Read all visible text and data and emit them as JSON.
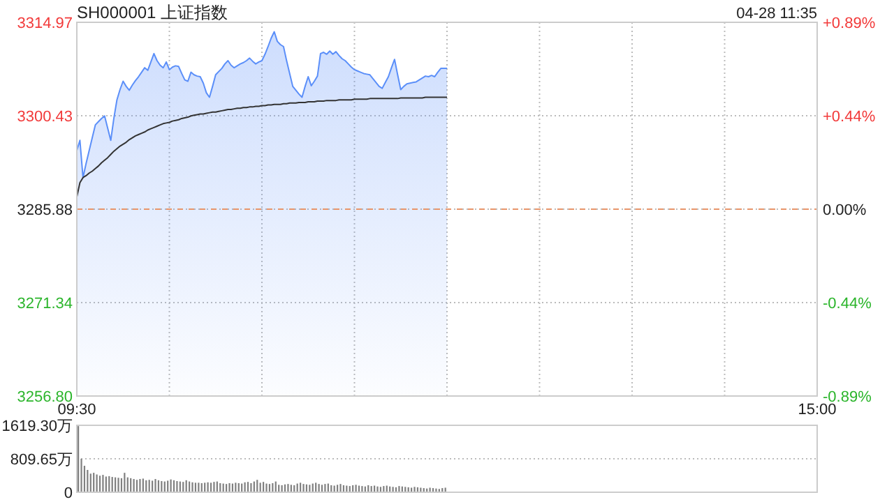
{
  "chart_data": [
    {
      "type": "area",
      "title": "SH000001 上证指数",
      "annotations": [
        "04-28 11:35"
      ],
      "categories": [
        "09:30",
        null,
        null,
        null,
        null,
        null,
        null,
        null,
        null,
        null,
        null,
        null,
        null,
        null,
        null,
        null,
        null,
        null,
        null,
        null,
        null,
        null,
        null,
        null,
        null,
        null,
        null,
        null,
        null,
        null,
        null,
        null,
        null,
        null,
        null,
        null,
        null,
        null,
        null,
        null,
        null,
        null,
        null,
        null,
        null,
        null,
        null,
        null,
        null,
        null,
        null,
        null,
        null,
        null,
        null,
        null,
        null,
        null,
        null,
        null,
        null,
        null,
        null,
        null,
        null,
        null,
        null,
        null,
        null,
        null,
        null,
        null,
        null,
        null,
        null,
        null,
        null,
        null,
        null,
        null,
        null,
        null,
        null,
        null,
        null,
        null,
        null,
        null,
        null,
        null,
        null,
        null,
        null,
        null,
        null,
        null,
        null,
        null,
        null,
        null,
        null,
        null,
        null,
        null,
        null,
        null,
        null,
        null,
        null,
        null,
        null,
        null,
        null,
        null,
        null,
        null,
        null,
        null,
        null,
        null,
        null,
        null,
        null,
        null,
        null,
        null,
        null,
        null,
        null,
        null,
        null,
        null,
        null,
        null,
        null,
        null,
        null,
        null,
        null,
        null,
        null,
        null,
        null,
        null,
        null,
        null,
        null,
        null,
        null,
        null,
        null,
        null,
        null,
        null,
        null,
        null,
        null,
        null,
        null,
        null,
        null,
        null,
        null,
        null,
        null,
        null,
        null,
        null,
        null,
        null,
        null,
        null,
        null,
        null,
        null,
        null,
        null,
        null,
        null,
        null,
        null,
        null,
        null,
        null,
        null,
        null,
        null,
        null,
        null,
        null,
        null,
        null,
        null,
        null,
        null,
        null,
        null,
        null,
        null,
        null,
        null,
        null,
        null,
        null,
        null,
        null,
        null,
        null,
        null,
        null,
        null,
        null,
        null,
        null,
        null,
        null,
        null,
        null,
        null,
        null,
        null,
        null,
        null,
        null,
        null,
        null,
        null,
        null,
        null,
        null,
        null,
        null,
        null,
        null,
        null,
        null,
        null,
        null,
        null,
        null,
        "15:00"
      ],
      "ylim": [
        3256.8,
        3314.97
      ],
      "yticks": [
        {
          "value": 3256.8,
          "label": "3256.80"
        },
        3271.34,
        3285.88,
        3300.43,
        3314.97
      ],
      "y2lim": [
        -0.885,
        0.885
      ],
      "y2ticks": [
        {
          "value": -0.885,
          "label": "-0.89%"
        },
        {
          "value": -0.4425,
          "label": "-0.44%"
        },
        {
          "value": 0,
          "label": "0.00%"
        },
        {
          "value": 0.4425,
          "label": "+0.44%"
        },
        {
          "value": 0.885,
          "label": "+0.89%"
        }
      ],
      "grid": true,
      "ref_lines": [
        {
          "axis": "y",
          "value": 3285.88,
          "color": "#e8956a",
          "line_style": "dashed"
        }
      ],
      "series": [
        {
          "type": "area",
          "color": "#5b8ff9",
          "values": [
            3295.0,
            3296.6,
            3290.8,
            3293.0,
            3295.0,
            3297.0,
            3299.0,
            3299.5,
            3300.0,
            3300.4,
            3298.5,
            3296.6,
            3300.0,
            3302.9,
            3304.5,
            3305.8,
            3305.0,
            3304.4,
            3305.2,
            3305.9,
            3306.5,
            3307.2,
            3307.9,
            3307.5,
            3308.8,
            3310.1,
            3309.0,
            3308.3,
            3307.9,
            3308.8,
            3307.6,
            3308.0,
            3308.2,
            3308.1,
            3307.0,
            3306.0,
            3305.8,
            3307.2,
            3306.8,
            3306.6,
            3306.5,
            3305.5,
            3304.0,
            3303.3,
            3305.0,
            3306.8,
            3307.3,
            3307.8,
            3308.5,
            3309.0,
            3308.3,
            3307.9,
            3308.2,
            3308.5,
            3308.7,
            3309.0,
            3309.4,
            3308.9,
            3308.5,
            3308.8,
            3309.0,
            3310.0,
            3311.2,
            3312.5,
            3313.5,
            3312.0,
            3311.5,
            3311.2,
            3309.0,
            3307.0,
            3305.0,
            3304.4,
            3303.8,
            3303.3,
            3305.0,
            3306.5,
            3305.1,
            3305.8,
            3306.6,
            3310.1,
            3310.3,
            3310.0,
            3310.5,
            3310.0,
            3310.4,
            3309.8,
            3309.3,
            3309.0,
            3308.5,
            3308.0,
            3307.6,
            3307.4,
            3307.2,
            3307.0,
            3306.9,
            3306.8,
            3306.2,
            3305.6,
            3305.0,
            3304.7,
            3305.6,
            3306.5,
            3307.9,
            3309.2,
            3306.8,
            3304.5,
            3305.0,
            3305.4,
            3305.5,
            3305.6,
            3305.7,
            3306.0,
            3306.3,
            3306.6,
            3306.5,
            3306.7,
            3306.5,
            3307.2,
            3307.8,
            3307.8,
            3307.8,
            null,
            null,
            null,
            null,
            null,
            null,
            null,
            null,
            null,
            null,
            null,
            null,
            null,
            null,
            null,
            null,
            null,
            null,
            null,
            null,
            null,
            null,
            null,
            null,
            null,
            null,
            null,
            null,
            null,
            null,
            null,
            null,
            null,
            null,
            null,
            null,
            null,
            null,
            null,
            null,
            null,
            null,
            null,
            null,
            null,
            null,
            null,
            null,
            null,
            null,
            null,
            null,
            null,
            null,
            null,
            null,
            null,
            null,
            null,
            null,
            null,
            null,
            null,
            null,
            null,
            null,
            null,
            null,
            null,
            null,
            null,
            null,
            null,
            null,
            null,
            null,
            null,
            null,
            null,
            null,
            null,
            null,
            null,
            null,
            null,
            null,
            null,
            null,
            null,
            null,
            null,
            null,
            null,
            null,
            null,
            null,
            null,
            null,
            null,
            null,
            null,
            null,
            null,
            null,
            null,
            null,
            null,
            null,
            null,
            null,
            null,
            null,
            null,
            null,
            null,
            null,
            null,
            null,
            null,
            null
          ]
        },
        {
          "type": "line",
          "color": "#333333",
          "values": [
            3287.8,
            3290.0,
            3290.8,
            3291.1,
            3291.5,
            3291.8,
            3292.2,
            3292.6,
            3293.1,
            3293.5,
            3293.9,
            3294.4,
            3294.9,
            3295.3,
            3295.7,
            3296.0,
            3296.3,
            3296.7,
            3297.0,
            3297.3,
            3297.5,
            3297.7,
            3297.9,
            3298.2,
            3298.4,
            3298.6,
            3298.8,
            3299.0,
            3299.2,
            3299.3,
            3299.4,
            3299.6,
            3299.7,
            3299.8,
            3300.0,
            3300.1,
            3300.2,
            3300.4,
            3300.5,
            3300.6,
            3300.7,
            3300.7,
            3300.8,
            3300.9,
            3301.0,
            3301.0,
            3301.1,
            3301.2,
            3301.3,
            3301.4,
            3301.4,
            3301.5,
            3301.6,
            3301.6,
            3301.7,
            3301.7,
            3301.8,
            3301.8,
            3301.9,
            3301.9,
            3302.0,
            3302.0,
            3302.1,
            3302.1,
            3302.2,
            3302.2,
            3302.2,
            3302.3,
            3302.3,
            3302.4,
            3302.4,
            3302.4,
            3302.5,
            3302.5,
            3302.5,
            3302.6,
            3302.6,
            3302.6,
            3302.7,
            3302.7,
            3302.7,
            3302.8,
            3302.8,
            3302.8,
            3302.8,
            3302.9,
            3302.9,
            3302.9,
            3302.9,
            3302.9,
            3303.0,
            3303.0,
            3303.0,
            3303.0,
            3303.0,
            3303.1,
            3303.1,
            3303.1,
            3303.1,
            3303.1,
            3303.1,
            3303.1,
            3303.1,
            3303.1,
            3303.1,
            3303.2,
            3303.2,
            3303.2,
            3303.2,
            3303.2,
            3303.2,
            3303.2,
            3303.2,
            3303.3,
            3303.3,
            3303.3,
            3303.3,
            3303.3,
            3303.3,
            3303.3,
            3303.3,
            null,
            null,
            null,
            null,
            null,
            null,
            null,
            null,
            null,
            null,
            null,
            null,
            null,
            null,
            null,
            null,
            null,
            null,
            null,
            null,
            null,
            null,
            null,
            null,
            null,
            null,
            null,
            null,
            null,
            null,
            null,
            null,
            null,
            null,
            null,
            null,
            null,
            null,
            null,
            null,
            null,
            null,
            null,
            null,
            null,
            null,
            null,
            null,
            null,
            null,
            null,
            null,
            null,
            null,
            null,
            null,
            null,
            null,
            null,
            null,
            null,
            null,
            null,
            null,
            null,
            null,
            null,
            null,
            null,
            null,
            null,
            null,
            null,
            null,
            null,
            null,
            null,
            null,
            null,
            null,
            null,
            null,
            null,
            null,
            null,
            null,
            null,
            null,
            null,
            null,
            null,
            null,
            null,
            null,
            null,
            null,
            null,
            null,
            null,
            null,
            null,
            null,
            null,
            null,
            null,
            null,
            null,
            null,
            null,
            null,
            null,
            null,
            null,
            null,
            null,
            null,
            null,
            null,
            null,
            null
          ]
        }
      ]
    },
    {
      "type": "bar",
      "color": "#808080",
      "tick_labels": "y",
      "grid": "y",
      "categories": [
        null,
        null,
        null,
        null,
        null,
        null,
        null,
        null,
        null,
        null,
        null,
        null,
        null,
        null,
        null,
        null,
        null,
        null,
        null,
        null,
        null,
        null,
        null,
        null,
        null,
        null,
        null,
        null,
        null,
        null,
        null,
        null,
        null,
        null,
        null,
        null,
        null,
        null,
        null,
        null,
        null,
        null,
        null,
        null,
        null,
        null,
        null,
        null,
        null,
        null,
        null,
        null,
        null,
        null,
        null,
        null,
        null,
        null,
        null,
        null,
        null,
        null,
        null,
        null,
        null,
        null,
        null,
        null,
        null,
        null,
        null,
        null,
        null,
        null,
        null,
        null,
        null,
        null,
        null,
        null,
        null,
        null,
        null,
        null,
        null,
        null,
        null,
        null,
        null,
        null,
        null,
        null,
        null,
        null,
        null,
        null,
        null,
        null,
        null,
        null,
        null,
        null,
        null,
        null,
        null,
        null,
        null,
        null,
        null,
        null,
        null,
        null,
        null,
        null,
        null,
        null,
        null,
        null,
        null,
        null,
        null,
        null,
        null,
        null,
        null,
        null,
        null,
        null,
        null,
        null,
        null,
        null,
        null,
        null,
        null,
        null,
        null,
        null,
        null,
        null,
        null,
        null,
        null,
        null,
        null,
        null,
        null,
        null,
        null,
        null,
        null,
        null,
        null,
        null,
        null,
        null,
        null,
        null,
        null,
        null,
        null,
        null,
        null,
        null,
        null,
        null,
        null,
        null,
        null,
        null,
        null,
        null,
        null,
        null,
        null,
        null,
        null,
        null,
        null,
        null,
        null,
        null,
        null,
        null,
        null,
        null,
        null,
        null,
        null,
        null,
        null,
        null,
        null,
        null,
        null,
        null,
        null,
        null,
        null,
        null,
        null,
        null,
        null,
        null,
        null,
        null,
        null,
        null,
        null,
        null,
        null,
        null,
        null,
        null,
        null,
        null,
        null,
        null,
        null,
        null,
        null,
        null,
        null,
        null,
        null,
        null,
        null,
        null,
        null,
        null,
        null,
        null,
        null,
        null,
        null,
        null,
        null,
        null,
        null,
        null,
        null
      ],
      "ylim": [
        0,
        1619.3
      ],
      "yticks": [
        0,
        {
          "value": 809.65,
          "label": "809.65万"
        },
        {
          "value": 1619.3,
          "label": "1619.30万"
        }
      ],
      "values": [
        1600,
        810,
        640,
        540,
        450,
        470,
        430,
        400,
        420,
        380,
        390,
        370,
        360,
        350,
        340,
        470,
        360,
        340,
        320,
        300,
        320,
        330,
        290,
        300,
        280,
        320,
        290,
        270,
        260,
        280,
        310,
        290,
        270,
        260,
        250,
        290,
        260,
        240,
        230,
        230,
        220,
        230,
        240,
        230,
        250,
        260,
        220,
        210,
        200,
        220,
        210,
        230,
        220,
        210,
        240,
        250,
        220,
        260,
        300,
        230,
        250,
        210,
        200,
        220,
        260,
        180,
        170,
        190,
        200,
        180,
        170,
        210,
        230,
        200,
        190,
        180,
        210,
        230,
        200,
        180,
        200,
        210,
        170,
        160,
        180,
        200,
        170,
        160,
        150,
        170,
        180,
        160,
        150,
        140,
        170,
        150,
        160,
        140,
        130,
        150,
        160,
        140,
        130,
        120,
        150,
        140,
        130,
        120,
        110,
        130,
        120,
        110,
        100,
        90,
        110,
        100,
        90,
        80,
        100,
        110,
        null,
        null,
        null,
        null,
        null,
        null,
        null,
        null,
        null,
        null,
        null,
        null,
        null,
        null,
        null,
        null,
        null,
        null,
        null,
        null,
        null,
        null,
        null,
        null,
        null,
        null,
        null,
        null,
        null,
        null,
        null,
        null,
        null,
        null,
        null,
        null,
        null,
        null,
        null,
        null,
        null,
        null,
        null,
        null,
        null,
        null,
        null,
        null,
        null,
        null,
        null,
        null,
        null,
        null,
        null,
        null,
        null,
        null,
        null,
        null,
        null,
        null,
        null,
        null,
        null,
        null,
        null,
        null,
        null,
        null,
        null,
        null,
        null,
        null,
        null,
        null,
        null,
        null,
        null,
        null,
        null,
        null,
        null,
        null,
        null,
        null,
        null,
        null,
        null,
        null,
        null,
        null,
        null,
        null,
        null,
        null,
        null,
        null,
        null,
        null,
        null,
        null,
        null,
        null,
        null,
        null,
        null,
        null,
        null,
        null,
        null,
        null,
        null,
        null,
        null,
        null,
        null,
        null,
        null,
        null,
        null
      ]
    }
  ]
}
